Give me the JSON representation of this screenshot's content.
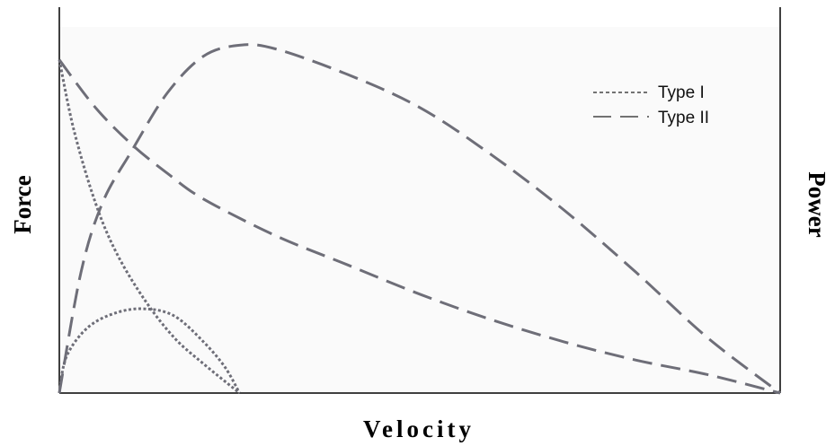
{
  "chart_data": {
    "type": "line",
    "title": "",
    "xlabel": "Velocity",
    "ylabel_left": "Force",
    "ylabel_right": "Power",
    "xlim": [
      0,
      1
    ],
    "ylim": [
      0,
      1
    ],
    "tick_labels": "none",
    "grid": false,
    "legend": {
      "placement": "top-right",
      "entries": [
        {
          "label": "Type I",
          "style": "short-dash"
        },
        {
          "label": "Type II",
          "style": "long-dash"
        }
      ]
    },
    "series": [
      {
        "name": "Type I",
        "quantity": "force",
        "style": "short-dash",
        "x": [
          0,
          0.02,
          0.05,
          0.08,
          0.12,
          0.16,
          0.2,
          0.25
        ],
        "y": [
          0.91,
          0.72,
          0.52,
          0.38,
          0.25,
          0.15,
          0.08,
          0
        ]
      },
      {
        "name": "Type I",
        "quantity": "power",
        "style": "short-dash",
        "x": [
          0,
          0.01,
          0.04,
          0.08,
          0.12,
          0.16,
          0.2,
          0.23,
          0.25
        ],
        "y": [
          0,
          0.1,
          0.18,
          0.22,
          0.23,
          0.21,
          0.14,
          0.07,
          0
        ]
      },
      {
        "name": "Type II",
        "quantity": "force",
        "style": "long-dash",
        "x": [
          0,
          0.05,
          0.1,
          0.15,
          0.2,
          0.3,
          0.4,
          0.5,
          0.6,
          0.7,
          0.8,
          0.9,
          1.0
        ],
        "y": [
          0.91,
          0.78,
          0.68,
          0.6,
          0.53,
          0.43,
          0.35,
          0.27,
          0.2,
          0.14,
          0.09,
          0.05,
          0
        ]
      },
      {
        "name": "Type II",
        "quantity": "power",
        "style": "long-dash",
        "x": [
          0,
          0.03,
          0.06,
          0.1,
          0.15,
          0.2,
          0.25,
          0.3,
          0.4,
          0.5,
          0.6,
          0.7,
          0.8,
          0.9,
          1.0
        ],
        "y": [
          0,
          0.33,
          0.52,
          0.66,
          0.82,
          0.92,
          0.95,
          0.94,
          0.87,
          0.78,
          0.65,
          0.5,
          0.33,
          0.15,
          0
        ]
      }
    ],
    "colors": {
      "axis": "#000000",
      "type1": "#6e6e78",
      "type2": "#6e6e78",
      "text": "#000000"
    }
  }
}
